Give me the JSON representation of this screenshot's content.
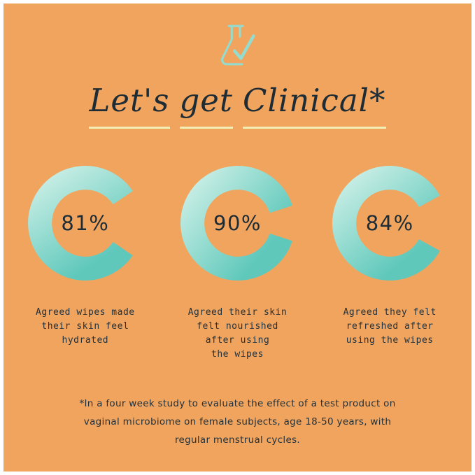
{
  "palette": {
    "background": "#F0A45E",
    "frame": "#FFFFFF",
    "ink": "#1E2C35",
    "ring_light": "#C6EDE4",
    "ring_deep": "#5FC8BB",
    "underline": "#F2EFB4",
    "icon_teal": "#93DCCF"
  },
  "header": {
    "icon": "flask-check-icon",
    "title": "Let's get Clinical*",
    "words": [
      "Let's",
      "get",
      "Clinical*"
    ]
  },
  "chart_data": {
    "type": "donut",
    "unit": "%",
    "title": "Let's get Clinical*",
    "legend_position": "none",
    "ring_gap_position": "right",
    "series": [
      {
        "value": 81,
        "label": "81%",
        "caption": "Agreed wipes made\ntheir skin feel\nhydrated"
      },
      {
        "value": 90,
        "label": "90%",
        "caption": "Agreed their skin\nfelt nourished\nafter using\nthe wipes"
      },
      {
        "value": 84,
        "label": "84%",
        "caption": "Agreed they felt\nrefreshed after\nusing the wipes"
      }
    ]
  },
  "footnote": {
    "text": "*In a four week study to evaluate the effect of a test product on\nvaginal microbiome on female subjects, age 18-50 years, with\nregular menstrual cycles."
  }
}
